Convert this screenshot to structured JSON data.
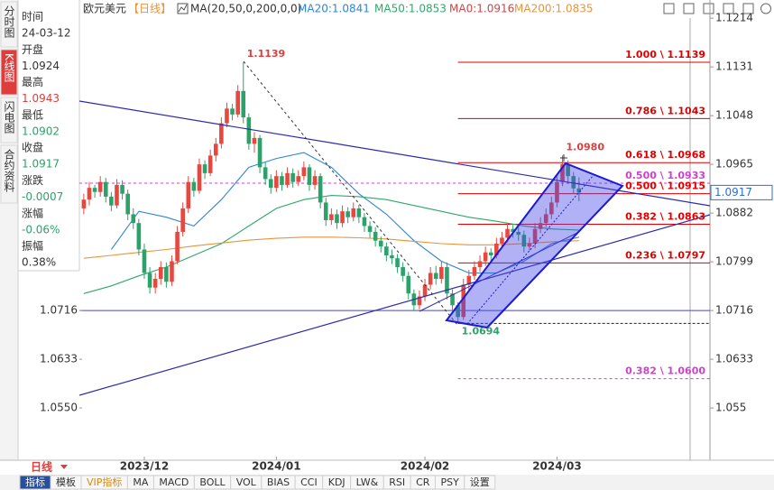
{
  "sidebar": {
    "tabs": [
      "分时图",
      "K线图",
      "闪电图",
      "合约资料"
    ],
    "active_tab": 1,
    "info": [
      {
        "label": "时间",
        "value": "24-03-12",
        "color": "#333333"
      },
      {
        "label": "开盘",
        "value": "1.0924",
        "color": "#333333"
      },
      {
        "label": "最高",
        "value": "1.0943",
        "color": "#e03c3c"
      },
      {
        "label": "最低",
        "value": "1.0902",
        "color": "#2ca26a"
      },
      {
        "label": "收盘",
        "value": "1.0917",
        "color": "#2ca26a"
      },
      {
        "label": "涨跌",
        "value": "-0.0007",
        "color": "#2ca26a"
      },
      {
        "label": "涨幅",
        "value": "-0.06%",
        "color": "#2ca26a"
      },
      {
        "label": "振幅",
        "value": "0.38%",
        "color": "#333333"
      }
    ]
  },
  "header": {
    "symbol": "欧元美元",
    "period": "【日线】",
    "indicator": "MA(20,50,0,200,0,0)",
    "ma0": {
      "name": "MA0:1.0916",
      "color": "#c84848"
    }
  },
  "chart_data": {
    "type": "candlestick",
    "up_color": "#e8473f",
    "down_color": "#2ca26a",
    "xlim": [
      -0.8,
      113.8
    ],
    "xticks": [
      {
        "value": 11,
        "label": "2023/12"
      },
      {
        "value": 35,
        "label": "2024/01"
      },
      {
        "value": 62,
        "label": "2024/02"
      },
      {
        "value": 86,
        "label": "2024/03"
      }
    ],
    "ylim": [
      1.0461,
      1.1245
    ],
    "yticks": [
      1.1214,
      1.1131,
      1.1048,
      1.0965,
      1.0882,
      1.0799,
      1.0716,
      1.0633,
      1.055
    ],
    "left_yticks": [
      {
        "value": 1.0716,
        "label": "1.0716"
      },
      {
        "value": 1.0633,
        "label": "1.0633"
      },
      {
        "value": 1.055,
        "label": "1.0550"
      }
    ],
    "candles": [
      [
        1.089,
        1.0915,
        1.088,
        1.0905
      ],
      [
        1.0905,
        1.0935,
        1.0895,
        1.0925
      ],
      [
        1.0925,
        1.093,
        1.0908,
        1.0918
      ],
      [
        1.0918,
        1.0945,
        1.091,
        1.0935
      ],
      [
        1.0935,
        1.0942,
        1.09,
        1.091
      ],
      [
        1.091,
        1.0918,
        1.0885,
        1.0895
      ],
      [
        1.0895,
        1.094,
        1.089,
        1.093
      ],
      [
        1.093,
        1.0938,
        1.0905,
        1.0915
      ],
      [
        1.0915,
        1.0922,
        1.087,
        1.088
      ],
      [
        1.088,
        1.089,
        1.0855,
        1.0865
      ],
      [
        1.0865,
        1.0872,
        1.081,
        1.082
      ],
      [
        1.082,
        1.083,
        1.077,
        1.078
      ],
      [
        1.078,
        1.079,
        1.0745,
        1.0755
      ],
      [
        1.0755,
        1.078,
        1.0745,
        1.077
      ],
      [
        1.077,
        1.08,
        1.076,
        1.079
      ],
      [
        1.079,
        1.0798,
        1.0755,
        1.0765
      ],
      [
        1.0765,
        1.081,
        1.0758,
        1.08
      ],
      [
        1.08,
        1.086,
        1.0795,
        1.085
      ],
      [
        1.085,
        1.09,
        1.0842,
        1.089
      ],
      [
        1.089,
        1.0945,
        1.0882,
        1.0935
      ],
      [
        1.0935,
        1.0942,
        1.091,
        1.092
      ],
      [
        1.092,
        1.0975,
        1.0915,
        1.0965
      ],
      [
        1.0965,
        1.0972,
        1.094,
        1.095
      ],
      [
        1.095,
        1.099,
        1.0945,
        1.098
      ],
      [
        1.098,
        1.101,
        1.097,
        1.1
      ],
      [
        1.1,
        1.1045,
        1.0992,
        1.1035
      ],
      [
        1.1035,
        1.107,
        1.1028,
        1.106
      ],
      [
        1.106,
        1.1068,
        1.104,
        1.105
      ],
      [
        1.105,
        1.11,
        1.1045,
        1.109
      ],
      [
        1.109,
        1.1139,
        1.1035,
        1.1045
      ],
      [
        1.1045,
        1.1052,
        1.099,
        1.1
      ],
      [
        1.1,
        1.102,
        1.0985,
        1.101
      ],
      [
        1.101,
        1.1015,
        1.095,
        1.096
      ],
      [
        1.096,
        1.0968,
        1.093,
        1.094
      ],
      [
        1.094,
        1.0948,
        1.0915,
        1.0925
      ],
      [
        1.0925,
        1.0955,
        1.0918,
        1.0945
      ],
      [
        1.0945,
        1.0952,
        1.092,
        1.093
      ],
      [
        1.093,
        1.096,
        1.0925,
        1.095
      ],
      [
        1.095,
        1.0958,
        1.0925,
        1.0935
      ],
      [
        1.0935,
        1.0955,
        1.0928,
        1.0945
      ],
      [
        1.0945,
        1.097,
        1.0938,
        1.096
      ],
      [
        1.096,
        1.0965,
        1.092,
        1.093
      ],
      [
        1.093,
        1.0955,
        1.0922,
        1.0945
      ],
      [
        1.0945,
        1.095,
        1.089,
        1.09
      ],
      [
        1.09,
        1.0908,
        1.086,
        1.087
      ],
      [
        1.087,
        1.089,
        1.0862,
        1.088
      ],
      [
        1.088,
        1.0888,
        1.0855,
        1.0865
      ],
      [
        1.0865,
        1.0895,
        1.0858,
        1.0885
      ],
      [
        1.0885,
        1.0892,
        1.0865,
        1.0875
      ],
      [
        1.0875,
        1.09,
        1.0868,
        1.089
      ],
      [
        1.089,
        1.0896,
        1.0865,
        1.0875
      ],
      [
        1.0875,
        1.0882,
        1.085,
        1.086
      ],
      [
        1.086,
        1.0868,
        1.084,
        1.085
      ],
      [
        1.085,
        1.0858,
        1.0825,
        1.0835
      ],
      [
        1.0835,
        1.0842,
        1.0815,
        1.0825
      ],
      [
        1.0825,
        1.0832,
        1.08,
        1.081
      ],
      [
        1.081,
        1.082,
        1.0795,
        1.0805
      ],
      [
        1.0805,
        1.0812,
        1.078,
        1.079
      ],
      [
        1.079,
        1.0798,
        1.0765,
        1.0775
      ],
      [
        1.0775,
        1.0782,
        1.0735,
        1.0745
      ],
      [
        1.0745,
        1.0752,
        1.0715,
        1.0725
      ],
      [
        1.0725,
        1.075,
        1.0718,
        1.074
      ],
      [
        1.074,
        1.077,
        1.0732,
        1.076
      ],
      [
        1.076,
        1.079,
        1.0752,
        1.078
      ],
      [
        1.078,
        1.0792,
        1.076,
        1.077
      ],
      [
        1.077,
        1.08,
        1.0762,
        1.079
      ],
      [
        1.079,
        1.0798,
        1.0735,
        1.0745
      ],
      [
        1.0745,
        1.0752,
        1.0715,
        1.0725
      ],
      [
        1.0725,
        1.073,
        1.0694,
        1.0705
      ],
      [
        1.0705,
        1.077,
        1.07,
        1.076
      ],
      [
        1.076,
        1.0785,
        1.075,
        1.0775
      ],
      [
        1.0775,
        1.08,
        1.0768,
        1.079
      ],
      [
        1.079,
        1.081,
        1.0782,
        1.08
      ],
      [
        1.08,
        1.0825,
        1.0792,
        1.0815
      ],
      [
        1.0815,
        1.0822,
        1.08,
        1.081
      ],
      [
        1.081,
        1.084,
        1.0805,
        1.083
      ],
      [
        1.083,
        1.085,
        1.0822,
        1.084
      ],
      [
        1.084,
        1.0865,
        1.0832,
        1.0855
      ],
      [
        1.0855,
        1.0862,
        1.084,
        1.085
      ],
      [
        1.085,
        1.0858,
        1.0835,
        1.0845
      ],
      [
        1.0845,
        1.0852,
        1.0815,
        1.0825
      ],
      [
        1.0825,
        1.084,
        1.0818,
        1.083
      ],
      [
        1.083,
        1.0865,
        1.0822,
        1.0855
      ],
      [
        1.0855,
        1.0875,
        1.0848,
        1.0865
      ],
      [
        1.0865,
        1.089,
        1.0858,
        1.088
      ],
      [
        1.088,
        1.091,
        1.0872,
        1.09
      ],
      [
        1.09,
        1.0945,
        1.0892,
        1.0935
      ],
      [
        1.0935,
        1.098,
        1.0928,
        1.0965
      ],
      [
        1.0965,
        1.0972,
        1.0935,
        1.0945
      ],
      [
        1.0945,
        1.0952,
        1.0915,
        1.0924
      ],
      [
        1.0924,
        1.0943,
        1.0902,
        1.0917
      ]
    ],
    "series": [
      {
        "name": "MA20:1.0841",
        "color": "#2e86d6",
        "x": [
          5,
          10,
          15,
          20,
          25,
          30,
          35,
          40,
          45,
          50,
          55,
          60,
          65,
          70,
          75,
          80,
          85,
          90
        ],
        "values": [
          1.082,
          1.0885,
          1.0875,
          1.086,
          1.0905,
          1.096,
          1.0975,
          1.0985,
          1.096,
          1.0915,
          1.088,
          1.0835,
          1.08,
          1.078,
          1.078,
          1.08,
          1.083,
          1.0841
        ]
      },
      {
        "name": "MA50:1.0853",
        "color": "#2fa86a",
        "x": [
          0,
          5,
          10,
          15,
          20,
          25,
          30,
          35,
          40,
          45,
          50,
          55,
          60,
          65,
          70,
          75,
          80,
          85,
          90
        ],
        "values": [
          1.0745,
          1.0758,
          1.0775,
          1.079,
          1.081,
          1.083,
          1.086,
          1.089,
          1.0905,
          1.0912,
          1.091,
          1.0905,
          1.0895,
          1.0885,
          1.0875,
          1.0868,
          1.086,
          1.0855,
          1.0853
        ]
      },
      {
        "name": "MA200:1.0835",
        "color": "#e8943a",
        "x": [
          0,
          5,
          10,
          15,
          20,
          25,
          30,
          35,
          40,
          45,
          50,
          55,
          60,
          65,
          70,
          75,
          80,
          85,
          90
        ],
        "values": [
          1.0805,
          1.081,
          1.0815,
          1.082,
          1.0826,
          1.0831,
          1.0836,
          1.0839,
          1.0841,
          1.0841,
          1.084,
          1.0838,
          1.0834,
          1.083,
          1.0828,
          1.0828,
          1.083,
          1.0833,
          1.0835
        ]
      }
    ],
    "levels": [
      {
        "value": 1.1139,
        "label": "1.000 \\ 1.1139",
        "color": "#e00000",
        "from": 68
      },
      {
        "value": 1.1043,
        "label": "0.786 \\ 1.1043",
        "color": "#e00000",
        "from": 68
      },
      {
        "value": 1.0968,
        "label": "0.618 \\ 1.0968",
        "color": "#e00000",
        "from": 68
      },
      {
        "value": 1.0933,
        "label": "0.500 \\ 1.0933",
        "color": "#d040d0",
        "dashed": true
      },
      {
        "value": 1.0915,
        "label": "0.500 \\ 1.0915",
        "color": "#e00000",
        "from": 68
      },
      {
        "value": 1.0863,
        "label": "0.382 \\ 1.0863",
        "color": "#e00000",
        "from": 68
      },
      {
        "value": 1.0797,
        "label": "0.236 \\ 1.0797",
        "color": "#e00000",
        "from": 68
      },
      {
        "value": 1.06,
        "label": "0.382 \\ 1.0600",
        "color": "#d040d0",
        "dashed": true,
        "from": 68
      }
    ],
    "hlines": [
      {
        "value": 1.0716,
        "color": "#4848c0"
      },
      {
        "value": 1.0694,
        "color": "#222222",
        "dashed": true,
        "from": 68
      }
    ],
    "annotations": [
      {
        "text": "1.1139",
        "value": 1.1139,
        "index": 29,
        "color": "#e03c3c",
        "place": "above"
      },
      {
        "text": "1.0980",
        "value": 1.098,
        "index": 87,
        "color": "#e03c3c",
        "place": "above"
      },
      {
        "text": "1.0694",
        "value": 1.0694,
        "index": 68,
        "color": "#2ca26a",
        "place": "below"
      }
    ],
    "last_price_color": "#2e6fd0"
  },
  "toolbar": {
    "period": "日线",
    "tabs": [
      "指标",
      "模板",
      "VIP指标",
      "MA",
      "MACD",
      "BOLL",
      "VOL",
      "BIAS",
      "CCI",
      "KDJ",
      "LW&",
      "RSI",
      "CR",
      "PSY",
      "设置"
    ],
    "active_tab": 0,
    "vip_tab": 2
  }
}
